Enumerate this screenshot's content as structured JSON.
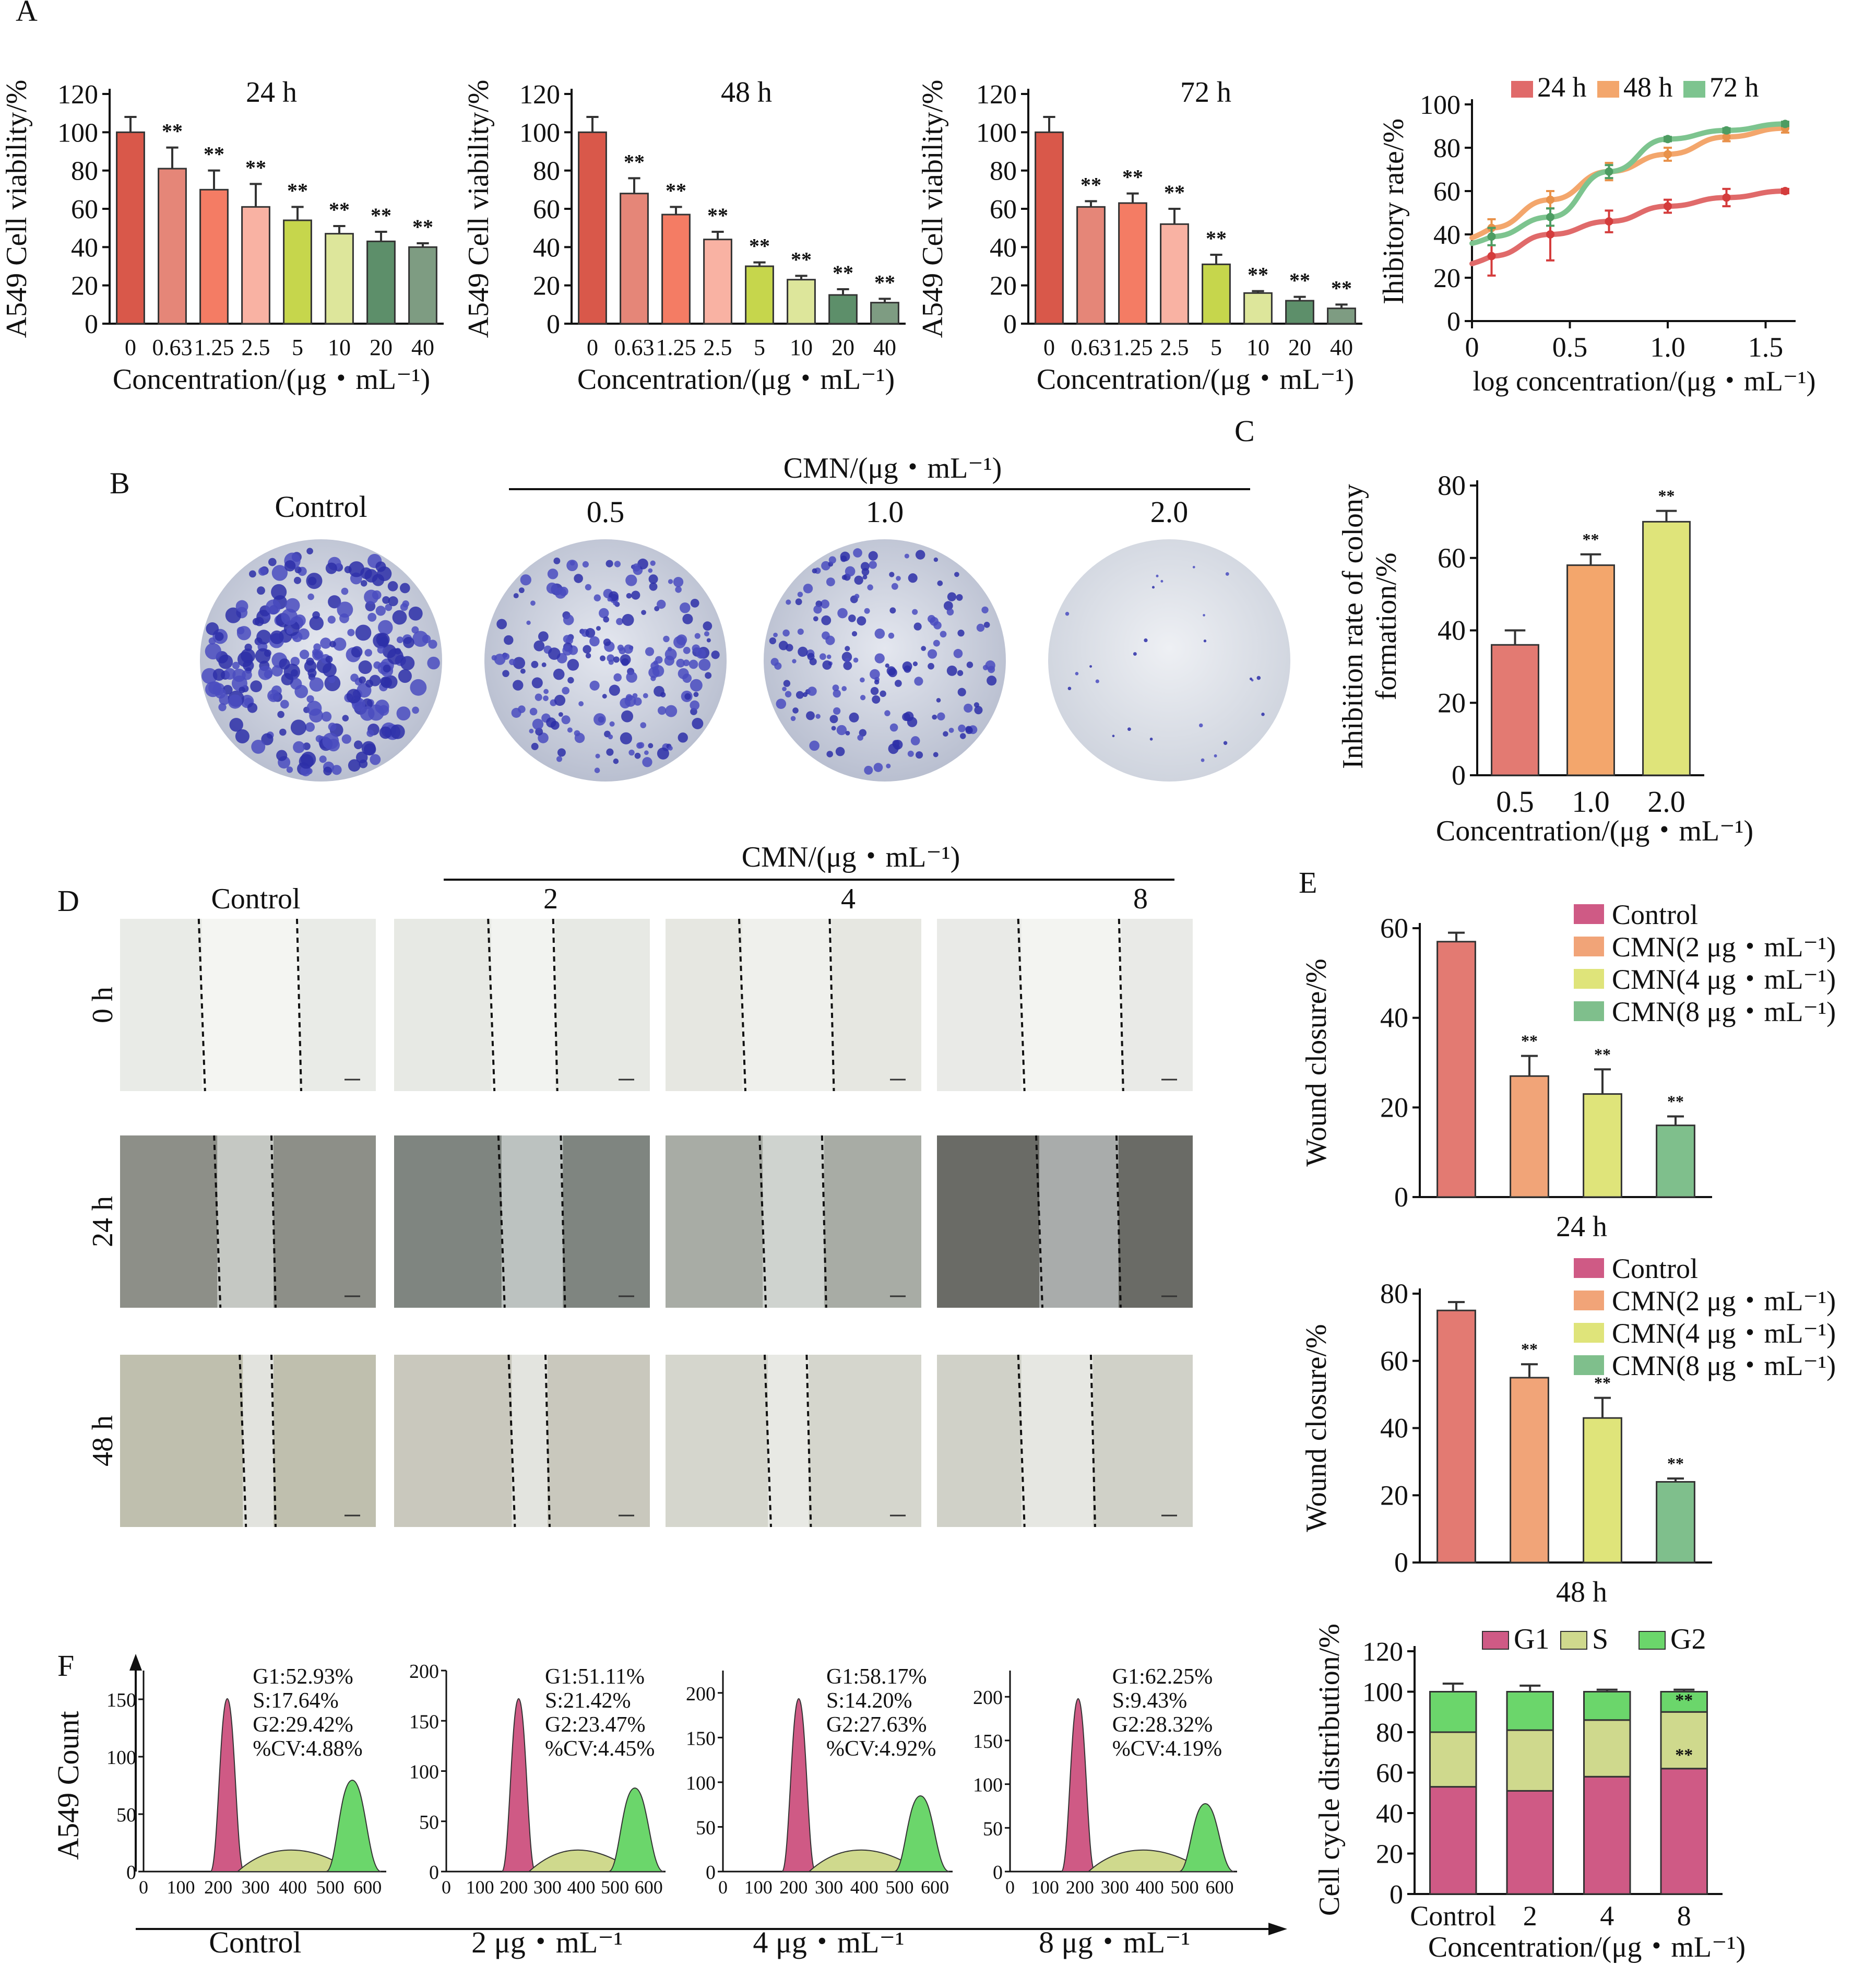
{
  "panels": {
    "A": "A",
    "B": "B",
    "C": "C",
    "D": "D",
    "E": "E",
    "F": "F"
  },
  "sig": "**",
  "colors": {
    "red1": "#d9584a",
    "red2": "#e58678",
    "coral": "#f47c64",
    "pink": "#f9b2a3",
    "lime": "#c6d64c",
    "pale": "#dde69b",
    "green": "#5d8f6a",
    "greygreen": "#7e9c82",
    "h24": "#e06a6a",
    "h48": "#f3a66c",
    "h72": "#7dc48f",
    "g1": "#cf5a85",
    "s": "#cfd98d",
    "g2": "#6bd66b",
    "e_control": "#e37a72",
    "e_c2": "#f1a478",
    "e_c4": "#dfe47a",
    "e_c8": "#7fbf8c"
  },
  "chart_data": [
    {
      "id": "A-24h",
      "type": "bar",
      "title": "24 h",
      "ylabel": "A549 Cell viability/%",
      "xlabel": "Concentration/(μg・mL⁻¹)",
      "categories": [
        "0",
        "0.63",
        "1.25",
        "2.5",
        "5",
        "10",
        "20",
        "40"
      ],
      "values": [
        100,
        81,
        70,
        61,
        54,
        47,
        43,
        40
      ],
      "errors": [
        8,
        11,
        10,
        12,
        7,
        4,
        5,
        2
      ],
      "significance": [
        "",
        "**",
        "**",
        "**",
        "**",
        "**",
        "**",
        "**"
      ],
      "ylim": [
        0,
        120
      ],
      "yticks": [
        0,
        20,
        40,
        60,
        80,
        100,
        120
      ]
    },
    {
      "id": "A-48h",
      "type": "bar",
      "title": "48 h",
      "ylabel": "A549 Cell viability/%",
      "xlabel": "Concentration/(μg・mL⁻¹)",
      "categories": [
        "0",
        "0.63",
        "1.25",
        "2.5",
        "5",
        "10",
        "20",
        "40"
      ],
      "values": [
        100,
        68,
        57,
        44,
        30,
        23,
        15,
        11
      ],
      "errors": [
        8,
        8,
        4,
        4,
        2,
        2,
        3,
        2
      ],
      "significance": [
        "",
        "**",
        "**",
        "**",
        "**",
        "**",
        "**",
        "**"
      ],
      "ylim": [
        0,
        120
      ],
      "yticks": [
        0,
        20,
        40,
        60,
        80,
        100,
        120
      ]
    },
    {
      "id": "A-72h",
      "type": "bar",
      "title": "72 h",
      "ylabel": "A549 Cell viability/%",
      "xlabel": "Concentration/(μg・mL⁻¹)",
      "categories": [
        "0",
        "0.63",
        "1.25",
        "2.5",
        "5",
        "10",
        "20",
        "40"
      ],
      "values": [
        100,
        61,
        63,
        52,
        31,
        16,
        12,
        8
      ],
      "errors": [
        8,
        3,
        5,
        8,
        5,
        1,
        2,
        2
      ],
      "significance": [
        "",
        "**",
        "**",
        "**",
        "**",
        "**",
        "**",
        "**"
      ],
      "ylim": [
        0,
        120
      ],
      "yticks": [
        0,
        20,
        40,
        60,
        80,
        100,
        120
      ]
    },
    {
      "id": "A-curve",
      "type": "line",
      "ylabel": "Ihibitory rate/%",
      "xlabel": "log concentration/(μg・mL⁻¹)",
      "xlim": [
        0,
        1.6
      ],
      "xticks": [
        "0",
        "0.5",
        "1.0",
        "1.5"
      ],
      "xtickvals": [
        0,
        0.5,
        1.0,
        1.5
      ],
      "ylim": [
        0,
        100
      ],
      "yticks": [
        0,
        20,
        40,
        60,
        80,
        100
      ],
      "legend": "top",
      "series": [
        {
          "name": "24 h",
          "x": [
            0.1,
            0.4,
            0.7,
            1.0,
            1.3,
            1.6
          ],
          "y": [
            30,
            40,
            46,
            53,
            57,
            60
          ],
          "err": [
            9,
            12,
            5,
            3,
            4,
            1
          ]
        },
        {
          "name": "48 h",
          "x": [
            0.1,
            0.4,
            0.7,
            1.0,
            1.3,
            1.6
          ],
          "y": [
            43,
            56,
            69,
            77,
            85,
            89
          ],
          "err": [
            4,
            4,
            4,
            3,
            2,
            2
          ]
        },
        {
          "name": "72 h",
          "x": [
            0.1,
            0.4,
            0.7,
            1.0,
            1.3,
            1.6
          ],
          "y": [
            39,
            48,
            69,
            84,
            88,
            91
          ],
          "err": [
            4,
            4,
            3,
            1,
            1,
            1
          ]
        }
      ]
    },
    {
      "id": "C",
      "type": "bar",
      "ylabel": "Inhibition rate of colony formation/%",
      "xlabel": "Concentration/(μg・mL⁻¹)",
      "categories": [
        "0.5",
        "1.0",
        "2.0"
      ],
      "values": [
        36,
        58,
        70
      ],
      "errors": [
        4,
        3,
        3
      ],
      "significance": [
        "",
        "**",
        "**"
      ],
      "ylim": [
        0,
        80
      ],
      "yticks": [
        0,
        20,
        40,
        60,
        80
      ]
    },
    {
      "id": "E-24h",
      "type": "bar",
      "ylabel": "Wound closure/%",
      "xlabel": "24 h",
      "categories": [
        "Control",
        "CMN(2 μg・mL⁻¹)",
        "CMN(4 μg・mL⁻¹)",
        "CMN(8 μg・mL⁻¹)"
      ],
      "values": [
        57,
        27,
        23,
        16
      ],
      "errors": [
        2,
        4.5,
        5.5,
        2
      ],
      "significance": [
        "",
        "**",
        "**",
        "**"
      ],
      "ylim": [
        0,
        60
      ],
      "yticks": [
        0,
        20,
        40,
        60
      ]
    },
    {
      "id": "E-48h",
      "type": "bar",
      "ylabel": "Wound closure/%",
      "xlabel": "48 h",
      "categories": [
        "Control",
        "CMN(2 μg・mL⁻¹)",
        "CMN(4 μg・mL⁻¹)",
        "CMN(8 μg・mL⁻¹)"
      ],
      "values": [
        75,
        55,
        43,
        24
      ],
      "errors": [
        2.5,
        4,
        6,
        1
      ],
      "significance": [
        "",
        "**",
        "**",
        "**"
      ],
      "ylim": [
        0,
        80
      ],
      "yticks": [
        0,
        20,
        40,
        60,
        80
      ]
    },
    {
      "id": "F-stacked",
      "type": "bar",
      "ylabel": "Cell cycle distribution/%",
      "xlabel": "Concentration/(μg・mL⁻¹)",
      "categories": [
        "Control",
        "2",
        "4",
        "8"
      ],
      "series": [
        {
          "name": "G1",
          "values": [
            53,
            51,
            58,
            62
          ],
          "err": [
            3,
            4,
            1,
            2
          ]
        },
        {
          "name": "S",
          "values": [
            27,
            30,
            28,
            28
          ],
          "err": [
            7,
            6,
            2,
            1
          ]
        },
        {
          "name": "G2",
          "values": [
            20,
            19,
            14,
            10
          ],
          "err": [
            4,
            3,
            1,
            1
          ]
        }
      ],
      "significance_g1": [
        "",
        "",
        "",
        "**"
      ],
      "significance_g2": [
        "",
        "",
        "",
        "**"
      ],
      "ylim": [
        0,
        120
      ],
      "yticks": [
        0,
        20,
        40,
        60,
        80,
        100,
        120
      ]
    }
  ],
  "colony": {
    "header": "CMN/(μg・mL⁻¹)",
    "labels": [
      "Control",
      "0.5",
      "1.0",
      "2.0"
    ]
  },
  "wound": {
    "header": "CMN/(μg・mL⁻¹)",
    "cols": [
      "Control",
      "2",
      "4",
      "8"
    ],
    "rows": [
      "0 h",
      "24 h",
      "48 h"
    ]
  },
  "flow": {
    "ylabel": "A549 Count",
    "xticks": [
      "0",
      "100",
      "200",
      "300",
      "400",
      "500",
      "600"
    ],
    "panels": [
      {
        "label": "Control",
        "yticks": [
          "0",
          "50",
          "100",
          "150"
        ],
        "ymax": 175,
        "stats": [
          "G1:52.93%",
          "S:17.64%",
          "G2:29.42%",
          "%CV:4.88%"
        ]
      },
      {
        "label": "2 μg・mL⁻¹",
        "yticks": [
          "0",
          "50",
          "100",
          "150",
          "200"
        ],
        "ymax": 200,
        "stats": [
          "G1:51.11%",
          "S:21.42%",
          "G2:23.47%",
          "%CV:4.45%"
        ]
      },
      {
        "label": "4 μg・mL⁻¹",
        "yticks": [
          "0",
          "50",
          "100",
          "150",
          "200"
        ],
        "ymax": 225,
        "stats": [
          "G1:58.17%",
          "S:14.20%",
          "G2:27.63%",
          "%CV:4.92%"
        ]
      },
      {
        "label": "8 μg・mL⁻¹",
        "yticks": [
          "0",
          "50",
          "100",
          "150",
          "200"
        ],
        "ymax": 230,
        "stats": [
          "G1:62.25%",
          "S:9.43%",
          "G2:28.32%",
          "%CV:4.19%"
        ]
      }
    ]
  }
}
